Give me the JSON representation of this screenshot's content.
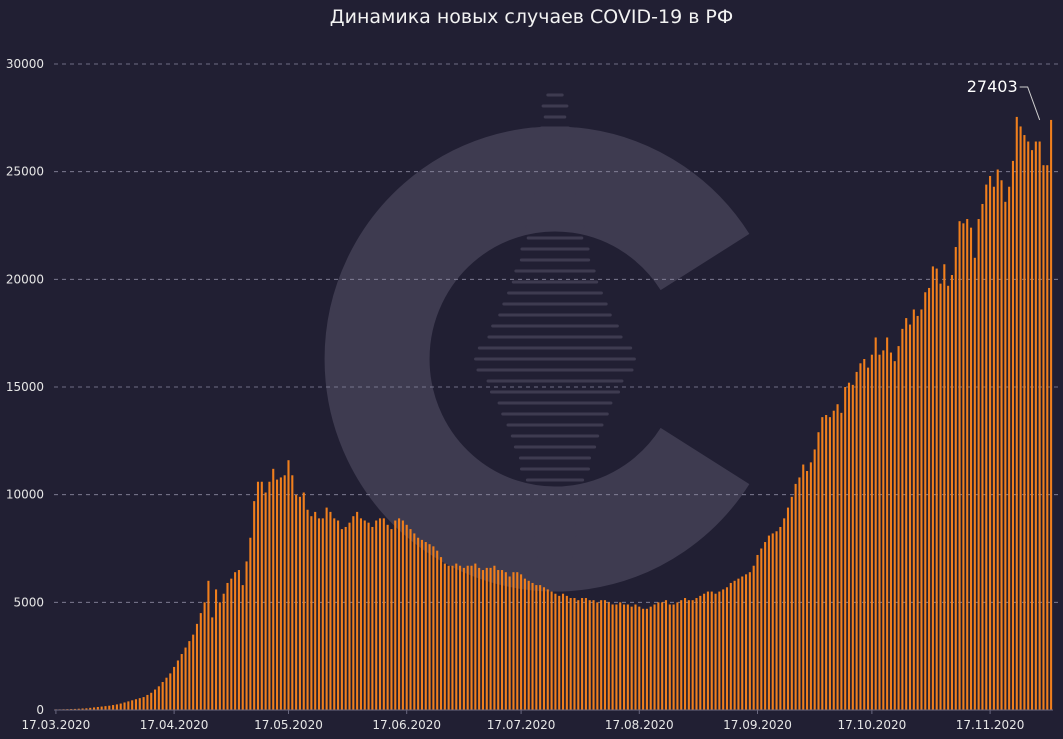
{
  "chart_data": {
    "type": "bar",
    "title": "Динамика новых случаев COVID-19 в РФ",
    "xlabel": "",
    "ylabel": "",
    "ylim": [
      0,
      30000
    ],
    "yticks": [
      0,
      5000,
      10000,
      15000,
      20000,
      25000,
      30000
    ],
    "xticks": [
      "17.03.2020",
      "17.04.2020",
      "17.05.2020",
      "17.06.2020",
      "17.07.2020",
      "17.08.2020",
      "17.09.2020",
      "17.10.2020",
      "17.11.2020"
    ],
    "grid": true,
    "bar_color": "#f07f1d",
    "start_date": "2020-03-17",
    "annotation": {
      "text": "27403",
      "date": "2020-11-30",
      "value": 27403
    },
    "values": [
      30,
      30,
      35,
      40,
      45,
      50,
      60,
      70,
      80,
      100,
      120,
      140,
      160,
      180,
      200,
      230,
      260,
      300,
      350,
      400,
      450,
      500,
      550,
      600,
      700,
      800,
      950,
      1100,
      1300,
      1500,
      1700,
      2000,
      2300,
      2600,
      2900,
      3200,
      3500,
      4000,
      4500,
      5000,
      6000,
      4300,
      5600,
      5000,
      5400,
      5900,
      6100,
      6400,
      6500,
      5800,
      6900,
      8000,
      9700,
      10600,
      10600,
      10100,
      10600,
      11200,
      10700,
      10800,
      10900,
      11600,
      10900,
      10000,
      9900,
      10100,
      9300,
      9000,
      9200,
      8900,
      8900,
      9400,
      9200,
      8900,
      8800,
      8400,
      8500,
      8700,
      9000,
      9200,
      8900,
      8800,
      8700,
      8500,
      8800,
      8900,
      8900,
      8600,
      8400,
      8800,
      8900,
      8800,
      8600,
      8400,
      8200,
      8000,
      7900,
      7800,
      7700,
      7600,
      7400,
      7100,
      6800,
      6700,
      6700,
      6800,
      6700,
      6600,
      6700,
      6700,
      6800,
      6600,
      6500,
      6600,
      6600,
      6700,
      6500,
      6500,
      6400,
      6200,
      6400,
      6400,
      6300,
      6100,
      6000,
      5900,
      5800,
      5800,
      5700,
      5600,
      5500,
      5400,
      5300,
      5400,
      5300,
      5200,
      5200,
      5100,
      5200,
      5200,
      5100,
      5100,
      5000,
      5100,
      5100,
      5000,
      4900,
      4900,
      5000,
      4900,
      4900,
      4800,
      4900,
      4800,
      4700,
      4700,
      4800,
      4900,
      5000,
      5000,
      5100,
      4900,
      4900,
      5000,
      5100,
      5200,
      5100,
      5100,
      5200,
      5300,
      5400,
      5500,
      5500,
      5400,
      5500,
      5600,
      5700,
      5900,
      6000,
      6100,
      6200,
      6300,
      6400,
      6700,
      7200,
      7500,
      7800,
      8100,
      8200,
      8300,
      8500,
      8900,
      9400,
      9900,
      10500,
      10800,
      11400,
      11100,
      11500,
      12100,
      12900,
      13600,
      13700,
      13600,
      13900,
      14200,
      13800,
      15000,
      15200,
      15100,
      15700,
      16100,
      16300,
      15900,
      16500,
      17300,
      16500,
      16700,
      17300,
      16600,
      16200,
      16900,
      17700,
      18200,
      17900,
      18600,
      18300,
      18600,
      19400,
      19600,
      20600,
      20500,
      19800,
      20700,
      19700,
      20200,
      21500,
      22700,
      22600,
      22800,
      22400,
      21000,
      22800,
      23500,
      24400,
      24800,
      24300,
      25100,
      24600,
      23600,
      24300,
      25500,
      27543,
      27100,
      26700,
      26400,
      26000,
      26400,
      26400,
      25300,
      25300,
      27403
    ]
  }
}
